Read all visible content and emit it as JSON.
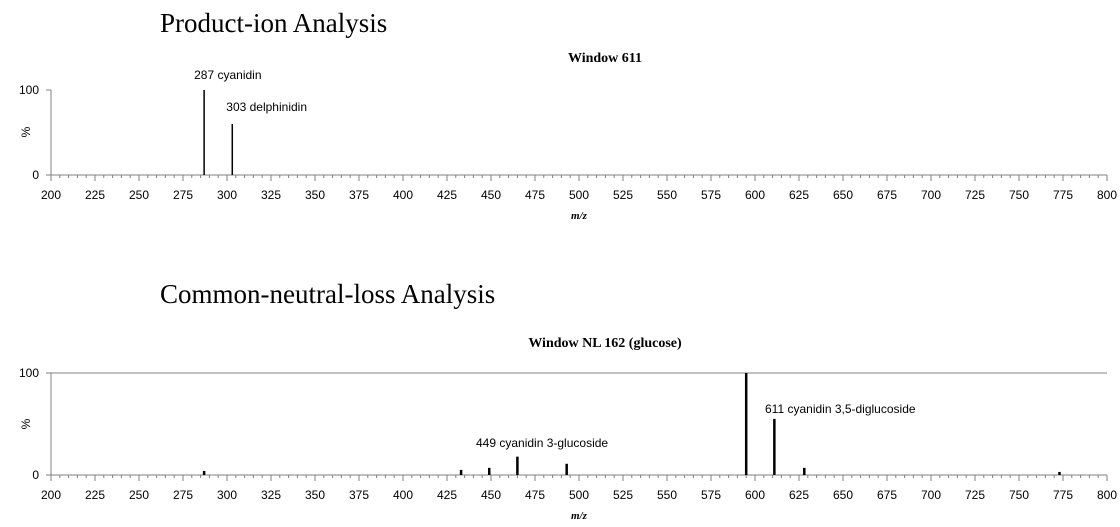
{
  "section_titles": [
    "Product-ion Analysis",
    "Common-neutral-loss Analysis"
  ],
  "chart_data": [
    {
      "type": "bar",
      "title": "Window 611",
      "xlabel": "m/z",
      "ylabel": "%",
      "xlim": [
        200,
        800
      ],
      "ylim": [
        0,
        100
      ],
      "x_ticks": [
        200,
        225,
        250,
        275,
        300,
        325,
        350,
        375,
        400,
        425,
        450,
        475,
        500,
        525,
        550,
        575,
        600,
        625,
        650,
        675,
        700,
        725,
        750,
        775,
        800
      ],
      "y_ticks": [
        0,
        100
      ],
      "grid": false,
      "peaks": [
        {
          "x": 287,
          "y": 100,
          "label": "287 cyanidin"
        },
        {
          "x": 303,
          "y": 60,
          "label": "303 delphinidin"
        }
      ]
    },
    {
      "type": "bar",
      "title": "Window NL 162 (glucose)",
      "xlabel": "m/z",
      "ylabel": "%",
      "xlim": [
        200,
        800
      ],
      "ylim": [
        0,
        100
      ],
      "x_ticks": [
        200,
        225,
        250,
        275,
        300,
        325,
        350,
        375,
        400,
        425,
        450,
        475,
        500,
        525,
        550,
        575,
        600,
        625,
        650,
        675,
        700,
        725,
        750,
        775,
        800
      ],
      "y_ticks": [
        0,
        100
      ],
      "grid": false,
      "peaks": [
        {
          "x": 287,
          "y": 4,
          "label": ""
        },
        {
          "x": 433,
          "y": 5,
          "label": ""
        },
        {
          "x": 449,
          "y": 7,
          "label": "449 cyanidin 3-glucoside"
        },
        {
          "x": 465,
          "y": 18,
          "label": ""
        },
        {
          "x": 493,
          "y": 11,
          "label": ""
        },
        {
          "x": 595,
          "y": 100,
          "label": ""
        },
        {
          "x": 611,
          "y": 55,
          "label": "611 cyanidin 3,5-diglucoside"
        },
        {
          "x": 628,
          "y": 7,
          "label": ""
        },
        {
          "x": 773,
          "y": 3,
          "label": ""
        }
      ]
    }
  ]
}
